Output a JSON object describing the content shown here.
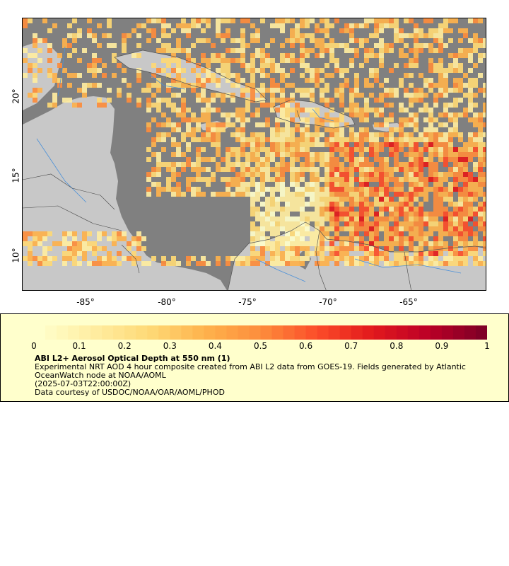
{
  "map": {
    "x_ticks": [
      "-85°",
      "-80°",
      "-75°",
      "-70°",
      "-65°"
    ],
    "y_ticks": [
      "20°",
      "15°",
      "10°"
    ],
    "ocean_color": "#808080",
    "land_color": "#c8c8c8",
    "river_color": "#4a90d9"
  },
  "legend": {
    "colorbar_ticks": [
      "0",
      "0.1",
      "0.2",
      "0.3",
      "0.4",
      "0.5",
      "0.6",
      "0.7",
      "0.8",
      "0.9",
      "1"
    ],
    "colors": [
      "#ffffcc",
      "#ffeda0",
      "#fed976",
      "#feb24c",
      "#fd8d3c",
      "#fc4e2a",
      "#e31a1c",
      "#bd0026",
      "#800026"
    ],
    "title": "ABI L2+ Aerosol Optical Depth at 550 nm (1)",
    "description": "Experimental NRT AOD 4 hour composite created from ABI L2 data from GOES-19. Fields generated by Atlantic OceanWatch node at NOAA/AOML",
    "timestamp": "(2025-07-03T22:00:00Z)",
    "credit": "Data courtesy of USDOC/NOAA/OAR/AOML/PHOD"
  }
}
